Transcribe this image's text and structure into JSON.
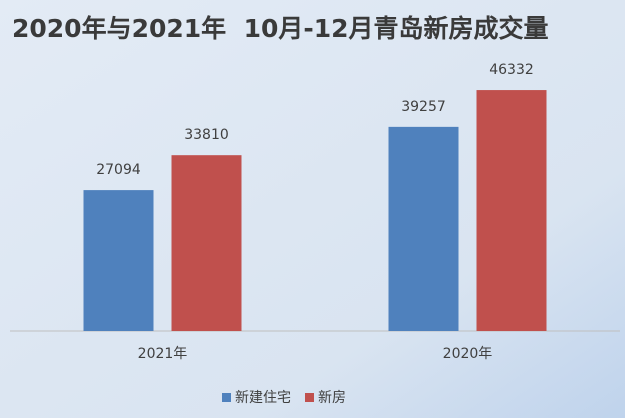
{
  "chart_data": {
    "type": "bar",
    "title": "2020年与2021年  10月-12月青岛新房成交量",
    "categories": [
      "2021年",
      "2020年"
    ],
    "series": [
      {
        "name": "新建住宅",
        "color": "#4f81bd",
        "values": [
          27094,
          39257
        ]
      },
      {
        "name": "新房",
        "color": "#c0504d",
        "values": [
          33810,
          46332
        ]
      }
    ],
    "ylim": [
      0,
      50000
    ],
    "grid": false,
    "legend": "bottom"
  }
}
